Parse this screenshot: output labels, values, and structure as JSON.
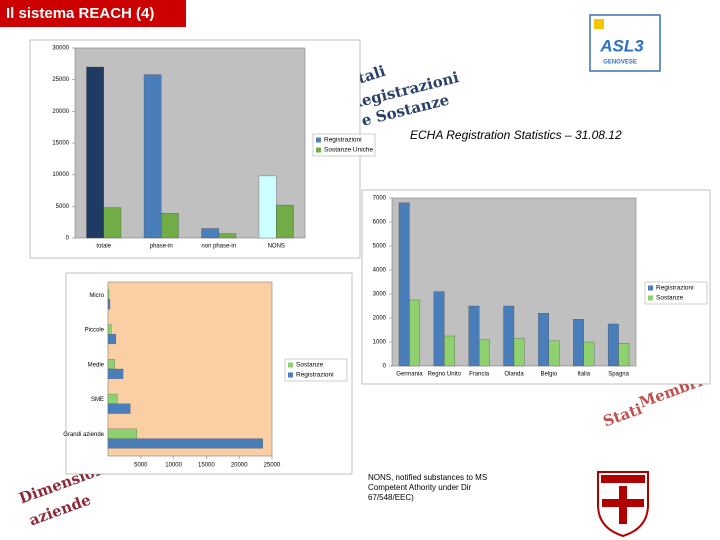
{
  "header": {
    "title": "Il sistema REACH (4)"
  },
  "logo": {
    "text": "ASL3",
    "subtitle": "GENOVESE"
  },
  "captions": {
    "registration_stats": "ECHA Registration Statistics – 31.08.12",
    "nons_note": "NONS, notified substances to MS Competent Athority under Dir 67/548/EEC)",
    "totals_art": [
      "Totali",
      "Registrazioni",
      "e Sostanze"
    ],
    "states_art": [
      "Stati",
      "Membri"
    ],
    "size_art": [
      "Dimensione",
      "aziende"
    ]
  },
  "chart_data": [
    {
      "type": "bar",
      "orientation": "vertical",
      "categories": [
        "totale",
        "phase-in",
        "non phase-in",
        "NONS"
      ],
      "series": [
        {
          "name": "Registrazioni",
          "color": "#4f81bd",
          "colors": [
            "#1f3b63",
            "#4a7ebb",
            "#4a7ebb",
            "#ccffff"
          ],
          "values": [
            27000,
            25800,
            1500,
            9800
          ]
        },
        {
          "name": "Sostanze Uniche",
          "color": "#70ad47",
          "values": [
            4800,
            3900,
            700,
            5200
          ]
        }
      ],
      "ylim": [
        0,
        30000
      ],
      "yticks": [
        0,
        5000,
        10000,
        15000,
        20000,
        25000,
        30000
      ],
      "plot_background": "#c0c0c0"
    },
    {
      "type": "bar",
      "orientation": "vertical",
      "categories": [
        "Germania",
        "Regno Unito",
        "Francia",
        "Olanda",
        "Belgio",
        "Italia",
        "Spagna"
      ],
      "series": [
        {
          "name": "Registrazioni",
          "color": "#4a7ebb",
          "values": [
            6800,
            3100,
            2500,
            2500,
            2200,
            1950,
            1750
          ]
        },
        {
          "name": "Sostanze",
          "color": "#8fd16f",
          "values": [
            2750,
            1250,
            1100,
            1150,
            1050,
            1000,
            950
          ]
        }
      ],
      "ylim": [
        0,
        7000
      ],
      "yticks": [
        0,
        1000,
        2000,
        3000,
        4000,
        5000,
        6000,
        7000
      ],
      "plot_background": "#c0c0c0"
    },
    {
      "type": "bar",
      "orientation": "horizontal",
      "categories": [
        "Micro",
        "Piccole",
        "Medie",
        "SME",
        "Grandi aziende"
      ],
      "series": [
        {
          "name": "Sostanze",
          "color": "#8fd16f",
          "values": [
            150,
            500,
            1000,
            1400,
            4400
          ]
        },
        {
          "name": "Registrazioni",
          "color": "#4a7ebb",
          "values": [
            300,
            1200,
            2300,
            3400,
            23600
          ]
        }
      ],
      "xlim": [
        0,
        25000
      ],
      "xticks": [
        5000,
        10000,
        15000,
        20000,
        25000
      ],
      "plot_background": "#fbcfa4"
    }
  ]
}
